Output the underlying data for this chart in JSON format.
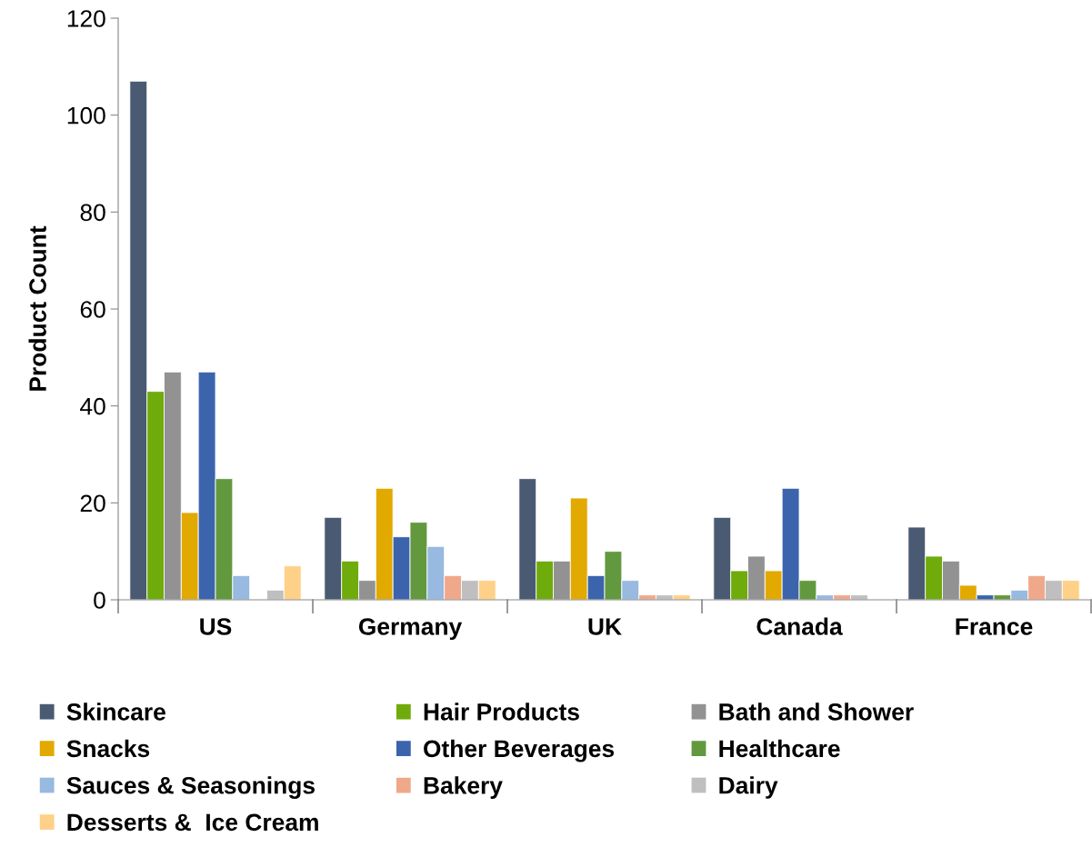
{
  "chart_data": {
    "type": "bar",
    "ylabel": "Product Count",
    "categories": [
      "US",
      "Germany",
      "UK",
      "Canada",
      "France"
    ],
    "ylim": [
      0,
      120
    ],
    "yticks": [
      0,
      20,
      40,
      60,
      80,
      100,
      120
    ],
    "grid": false,
    "legend": "bottom",
    "series": [
      {
        "name": "Skincare",
        "color": "#4a5a72",
        "values": [
          107,
          17,
          25,
          17,
          15
        ]
      },
      {
        "name": "Hair Products",
        "color": "#6fab0b",
        "values": [
          43,
          8,
          8,
          6,
          9
        ]
      },
      {
        "name": "Bath and Shower",
        "color": "#929292",
        "values": [
          47,
          4,
          8,
          9,
          8
        ]
      },
      {
        "name": "Snacks",
        "color": "#e2a900",
        "values": [
          18,
          23,
          21,
          6,
          3
        ]
      },
      {
        "name": "Other Beverages",
        "color": "#3b64ad",
        "values": [
          47,
          13,
          5,
          23,
          1
        ]
      },
      {
        "name": "Healthcare",
        "color": "#62993e",
        "values": [
          25,
          16,
          10,
          4,
          1
        ]
      },
      {
        "name": "Sauces & Seasonings",
        "color": "#98b9e0",
        "values": [
          5,
          11,
          4,
          1,
          2
        ]
      },
      {
        "name": "Bakery",
        "color": "#f0a88a",
        "values": [
          null,
          5,
          1,
          1,
          5
        ]
      },
      {
        "name": "Dairy",
        "color": "#bfbfbf",
        "values": [
          2,
          4,
          1,
          1,
          4
        ]
      },
      {
        "name": "Desserts &  Ice Cream",
        "color": "#ffd088",
        "values": [
          7,
          4,
          1,
          null,
          4
        ]
      }
    ]
  }
}
